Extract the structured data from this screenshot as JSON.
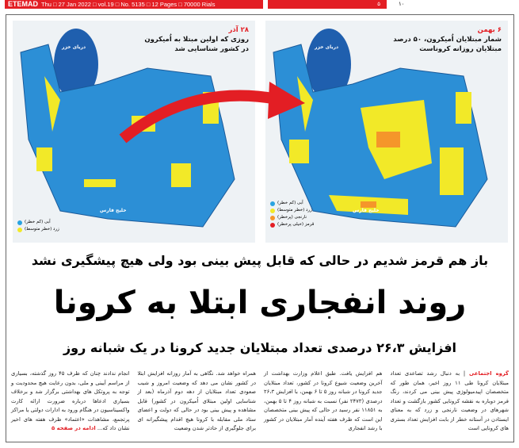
{
  "masthead": {
    "name": "ETEMAD",
    "info": "Thu □ 27 Jan 2022 □ vol.19 □ No. 5135 □ 12 Pages □ 70000 Rials",
    "section_number": "۵",
    "page_number": "۱۰"
  },
  "maps": [
    {
      "date": "۲۸ آذر",
      "caption": [
        "روزی که اولین مبتلا به اُمیکرون",
        "در کشور شناسایی شد"
      ],
      "caspian": "دریای خزر",
      "gulf": "خلیج فارس",
      "legend": [
        {
          "label": "آبی (کم خطر)",
          "color": "#29a3e0"
        },
        {
          "label": "زرد (خطر متوسط)",
          "color": "#f2e928"
        }
      ]
    },
    {
      "date": "۶ بهمن",
      "caption": [
        "شمار مبتلایان اُمیکرون، ۵۰ درصد",
        "مبتلایان روزانه کروناست"
      ],
      "caspian": "دریای خزر",
      "gulf": "خلیج فارس",
      "legend": [
        {
          "label": "آبی (کم خطر)",
          "color": "#29a3e0"
        },
        {
          "label": "زرد (خطر متوسط)",
          "color": "#f2e928"
        },
        {
          "label": "نارنجی (پرخطر)",
          "color": "#f5962a"
        },
        {
          "label": "قرمز (خیلی پرخطر)",
          "color": "#e31e24"
        }
      ]
    }
  ],
  "headline": {
    "kicker": "باز هم قرمز شدیم در حالی که قابل پیش بینی بود ولی هیچ پیشگیری نشد",
    "main": "روند انفجاری ابتلا به کرونا",
    "sub": "افزایش ۲۶،۳ درصدی تعداد مبتلایان جدید کرونا در یک شبانه روز"
  },
  "article": {
    "byline": "گروه اجتماعی",
    "columns": [
      "| به دنبال رشد تصاعدی تعداد مبتلایان کرونا طی ۱۱ روز اخیر، همان طور که متخصصان اپیدمیولوژی پیش بینی می کردند، رنگ قرمز دوباره به نقشه کرونایی کشور بازگشت و تعداد شهرهای در وضعیت نارنجی و زرد که به معنای ایستادن در آستانه خطر از بابت افزایش تعداد بستری های کرونایی است",
      "هم افزایش یافت. طبق اعلام وزارت بهداشت از آخرین وضعیت شیوع کرونا در کشور، تعداد مبتلایان جدید کرونا در شبانه روز ۵ تا ۶ بهمن، با افزایش ۲۶،۳ درصدی (۲۴۷۳ نفر) نسبت به شبانه روز ۴ تا ۵ بهمن، به ۱۱۸۵۱ نفر رسید در حالی که پیش بینی متخصصان این است که ظرف هفته آینده آمار مبتلایان در کشور با رشد انفجاری",
      "همراه خواهد شد. نگاهی به آمار روزانه افزایش ابتلا در کشور نشان می دهد که وضعیت امروز و شیب صعودی تعداد مبتلایان از دهه دوم آذرماه (بعد از شناسایی اولین مبتلای اُمیکرون در کشور) قابل مشاهده و پیش بینی بود در حالی که دولت و اعضای ستاد ملی مقابله با کرونا هیچ اقدام پیشگیرانه ای برای جلوگیری از حادتر شدن وضعیت",
      "انجام ندادند چنان که ظرف ۴۵ روز گذشته، بسیاری از مراسم آیینی و ملی، بدون رعایت هیچ محدودیت و توجه به پروتکل های بهداشتی برگزار شد و برخلاف بسیاری ادعاها درباره ضرورت ارائه کارت واکسیناسیون در هنگام ورود به ادارات دولتی یا مراکز پرتجمع، مشاهدات «اعتماد» ظرف هفته های اخیر نشان داد که..."
    ],
    "continued": "ادامه در صفحه ۵"
  }
}
